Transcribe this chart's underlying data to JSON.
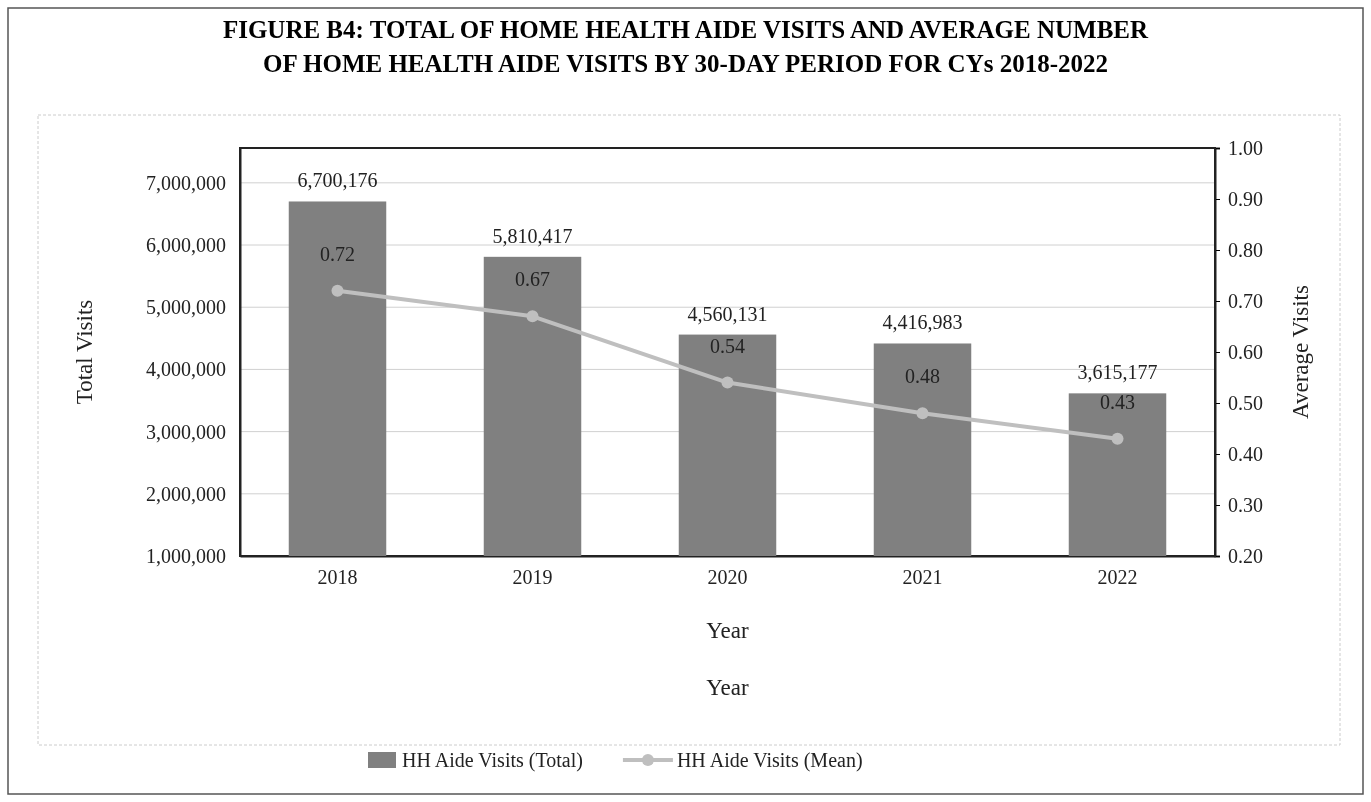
{
  "chart_data": {
    "type": "bar",
    "title": "FIGURE B4: TOTAL OF HOME HEALTH AIDE VISITS AND AVERAGE NUMBER OF HOME HEALTH AIDE VISITS BY 30-DAY PERIOD FOR CYs 2018-2022",
    "categories": [
      "2018",
      "2019",
      "2020",
      "2021",
      "2022"
    ],
    "series": [
      {
        "name": "HH Aide Visits (Total)",
        "color": "#808080",
        "values": [
          6700176,
          5810417,
          4560131,
          4416983,
          3615177
        ],
        "value_labels": [
          "6,700,176",
          "5,810,417",
          "4,560,131",
          "4,416,983",
          "3,615,177"
        ]
      },
      {
        "name": "HH Aide Visits (Mean)",
        "type": "line",
        "axis": "y2",
        "color": "#bfbfbf",
        "values": [
          0.72,
          0.67,
          0.54,
          0.48,
          0.43
        ],
        "value_labels": [
          "0.72",
          "0.67",
          "0.54",
          "0.48",
          "0.43"
        ]
      }
    ],
    "xlabel": "Year",
    "ylabel": "Total Visits",
    "y2label": "Average Visits",
    "annotations": [
      "Year"
    ],
    "ylim": [
      1000000,
      7560000
    ],
    "yticks": [
      {
        "value": 1000000,
        "label": "1,000,000"
      },
      {
        "value": 2000000,
        "label": "2,000,000"
      },
      {
        "value": 3000000,
        "label": "3,000,000"
      },
      {
        "value": 4000000,
        "label": "4,000,000"
      },
      {
        "value": 5000000,
        "label": "5,000,000"
      },
      {
        "value": 6000000,
        "label": "6,000,000"
      },
      {
        "value": 7000000,
        "label": "7,000,000"
      }
    ],
    "y2lim": [
      0.2,
      1.0
    ],
    "y2ticks": [
      {
        "value": 0.2,
        "label": "0.20"
      },
      {
        "value": 0.3,
        "label": "0.30"
      },
      {
        "value": 0.4,
        "label": "0.40"
      },
      {
        "value": 0.5,
        "label": "0.50"
      },
      {
        "value": 0.6,
        "label": "0.60"
      },
      {
        "value": 0.7,
        "label": "0.70"
      },
      {
        "value": 0.8,
        "label": "0.80"
      },
      {
        "value": 0.9,
        "label": "0.90"
      },
      {
        "value": 1.0,
        "label": "1.00"
      }
    ],
    "grid": "y",
    "legend": "bottom",
    "marker": "circle"
  }
}
